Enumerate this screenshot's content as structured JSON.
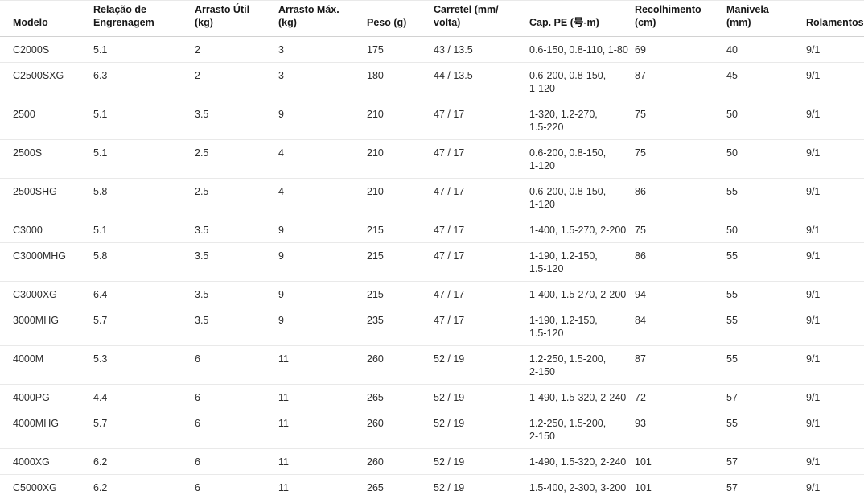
{
  "colors": {
    "background": "#ffffff",
    "header_text": "#181818",
    "body_text": "#2d2d2d",
    "header_border": "#d2d2d2",
    "row_border": "#e9e9e9"
  },
  "table": {
    "columns": [
      {
        "key": "modelo",
        "label": "Modelo"
      },
      {
        "key": "relacao",
        "label": "Relação de\nEngrenagem"
      },
      {
        "key": "arrasto_util",
        "label": "Arrasto Útil\n(kg)"
      },
      {
        "key": "arrasto_max",
        "label": "Arrasto Máx.\n(kg)"
      },
      {
        "key": "peso",
        "label": "Peso (g)"
      },
      {
        "key": "carretel",
        "label": "Carretel (mm/\nvolta)"
      },
      {
        "key": "cap_pe",
        "label": "Cap. PE (号-m)"
      },
      {
        "key": "recolhimento",
        "label": "Recolhimento\n(cm)"
      },
      {
        "key": "manivela",
        "label": "Manivela\n(mm)"
      },
      {
        "key": "rolamentos",
        "label": "Rolamentos"
      }
    ],
    "rows": [
      {
        "modelo": "C2000S",
        "relacao": "5.1",
        "arrasto_util": "2",
        "arrasto_max": "3",
        "peso": "175",
        "carretel": "43 / 13.5",
        "cap_pe": "0.6-150, 0.8-110, 1-80",
        "recolhimento": "69",
        "manivela": "40",
        "rolamentos": "9/1"
      },
      {
        "modelo": "C2500SXG",
        "relacao": "6.3",
        "arrasto_util": "2",
        "arrasto_max": "3",
        "peso": "180",
        "carretel": "44 / 13.5",
        "cap_pe": "0.6-200, 0.8-150,\n1-120",
        "recolhimento": "87",
        "manivela": "45",
        "rolamentos": "9/1"
      },
      {
        "modelo": "2500",
        "relacao": "5.1",
        "arrasto_util": "3.5",
        "arrasto_max": "9",
        "peso": "210",
        "carretel": "47 / 17",
        "cap_pe": "1-320, 1.2-270,\n1.5-220",
        "recolhimento": "75",
        "manivela": "50",
        "rolamentos": "9/1"
      },
      {
        "modelo": "2500S",
        "relacao": "5.1",
        "arrasto_util": "2.5",
        "arrasto_max": "4",
        "peso": "210",
        "carretel": "47 / 17",
        "cap_pe": "0.6-200, 0.8-150,\n1-120",
        "recolhimento": "75",
        "manivela": "50",
        "rolamentos": "9/1"
      },
      {
        "modelo": "2500SHG",
        "relacao": "5.8",
        "arrasto_util": "2.5",
        "arrasto_max": "4",
        "peso": "210",
        "carretel": "47 / 17",
        "cap_pe": "0.6-200, 0.8-150,\n1-120",
        "recolhimento": "86",
        "manivela": "55",
        "rolamentos": "9/1"
      },
      {
        "modelo": "C3000",
        "relacao": "5.1",
        "arrasto_util": "3.5",
        "arrasto_max": "9",
        "peso": "215",
        "carretel": "47 / 17",
        "cap_pe": "1-400, 1.5-270, 2-200",
        "recolhimento": "75",
        "manivela": "50",
        "rolamentos": "9/1"
      },
      {
        "modelo": "C3000MHG",
        "relacao": "5.8",
        "arrasto_util": "3.5",
        "arrasto_max": "9",
        "peso": "215",
        "carretel": "47 / 17",
        "cap_pe": "1-190, 1.2-150,\n1.5-120",
        "recolhimento": "86",
        "manivela": "55",
        "rolamentos": "9/1"
      },
      {
        "modelo": "C3000XG",
        "relacao": "6.4",
        "arrasto_util": "3.5",
        "arrasto_max": "9",
        "peso": "215",
        "carretel": "47 / 17",
        "cap_pe": "1-400, 1.5-270, 2-200",
        "recolhimento": "94",
        "manivela": "55",
        "rolamentos": "9/1"
      },
      {
        "modelo": "3000MHG",
        "relacao": "5.7",
        "arrasto_util": "3.5",
        "arrasto_max": "9",
        "peso": "235",
        "carretel": "47 / 17",
        "cap_pe": "1-190, 1.2-150,\n1.5-120",
        "recolhimento": "84",
        "manivela": "55",
        "rolamentos": "9/1"
      },
      {
        "modelo": "4000M",
        "relacao": "5.3",
        "arrasto_util": "6",
        "arrasto_max": "11",
        "peso": "260",
        "carretel": "52 / 19",
        "cap_pe": "1.2-250, 1.5-200,\n2-150",
        "recolhimento": "87",
        "manivela": "55",
        "rolamentos": "9/1"
      },
      {
        "modelo": "4000PG",
        "relacao": "4.4",
        "arrasto_util": "6",
        "arrasto_max": "11",
        "peso": "265",
        "carretel": "52 / 19",
        "cap_pe": "1-490, 1.5-320, 2-240",
        "recolhimento": "72",
        "manivela": "57",
        "rolamentos": "9/1"
      },
      {
        "modelo": "4000MHG",
        "relacao": "5.7",
        "arrasto_util": "6",
        "arrasto_max": "11",
        "peso": "260",
        "carretel": "52 / 19",
        "cap_pe": "1.2-250, 1.5-200,\n2-150",
        "recolhimento": "93",
        "manivela": "55",
        "rolamentos": "9/1"
      },
      {
        "modelo": "4000XG",
        "relacao": "6.2",
        "arrasto_util": "6",
        "arrasto_max": "11",
        "peso": "260",
        "carretel": "52 / 19",
        "cap_pe": "1-490, 1.5-320, 2-240",
        "recolhimento": "101",
        "manivela": "57",
        "rolamentos": "9/1"
      },
      {
        "modelo": "C5000XG",
        "relacao": "6.2",
        "arrasto_util": "6",
        "arrasto_max": "11",
        "peso": "265",
        "carretel": "52 / 19",
        "cap_pe": "1.5-400, 2-300, 3-200",
        "recolhimento": "101",
        "manivela": "57",
        "rolamentos": "9/1"
      }
    ]
  },
  "chart_data": {
    "type": "table",
    "title": "",
    "columns": [
      "Modelo",
      "Relação de Engrenagem",
      "Arrasto Útil (kg)",
      "Arrasto Máx. (kg)",
      "Peso (g)",
      "Carretel (mm/volta)",
      "Cap. PE (号-m)",
      "Recolhimento (cm)",
      "Manivela (mm)",
      "Rolamentos"
    ],
    "rows": [
      [
        "C2000S",
        5.1,
        2,
        3,
        175,
        "43 / 13.5",
        "0.6-150, 0.8-110, 1-80",
        69,
        40,
        "9/1"
      ],
      [
        "C2500SXG",
        6.3,
        2,
        3,
        180,
        "44 / 13.5",
        "0.6-200, 0.8-150, 1-120",
        87,
        45,
        "9/1"
      ],
      [
        "2500",
        5.1,
        3.5,
        9,
        210,
        "47 / 17",
        "1-320, 1.2-270, 1.5-220",
        75,
        50,
        "9/1"
      ],
      [
        "2500S",
        5.1,
        2.5,
        4,
        210,
        "47 / 17",
        "0.6-200, 0.8-150, 1-120",
        75,
        50,
        "9/1"
      ],
      [
        "2500SHG",
        5.8,
        2.5,
        4,
        210,
        "47 / 17",
        "0.6-200, 0.8-150, 1-120",
        86,
        55,
        "9/1"
      ],
      [
        "C3000",
        5.1,
        3.5,
        9,
        215,
        "47 / 17",
        "1-400, 1.5-270, 2-200",
        75,
        50,
        "9/1"
      ],
      [
        "C3000MHG",
        5.8,
        3.5,
        9,
        215,
        "47 / 17",
        "1-190, 1.2-150, 1.5-120",
        86,
        55,
        "9/1"
      ],
      [
        "C3000XG",
        6.4,
        3.5,
        9,
        215,
        "47 / 17",
        "1-400, 1.5-270, 2-200",
        94,
        55,
        "9/1"
      ],
      [
        "3000MHG",
        5.7,
        3.5,
        9,
        235,
        "47 / 17",
        "1-190, 1.2-150, 1.5-120",
        84,
        55,
        "9/1"
      ],
      [
        "4000M",
        5.3,
        6,
        11,
        260,
        "52 / 19",
        "1.2-250, 1.5-200, 2-150",
        87,
        55,
        "9/1"
      ],
      [
        "4000PG",
        4.4,
        6,
        11,
        265,
        "52 / 19",
        "1-490, 1.5-320, 2-240",
        72,
        57,
        "9/1"
      ],
      [
        "4000MHG",
        5.7,
        6,
        11,
        260,
        "52 / 19",
        "1.2-250, 1.5-200, 2-150",
        93,
        55,
        "9/1"
      ],
      [
        "4000XG",
        6.2,
        6,
        11,
        260,
        "52 / 19",
        "1-490, 1.5-320, 2-240",
        101,
        57,
        "9/1"
      ],
      [
        "C5000XG",
        6.2,
        6,
        11,
        265,
        "52 / 19",
        "1.5-400, 2-300, 3-200",
        101,
        57,
        "9/1"
      ]
    ]
  }
}
